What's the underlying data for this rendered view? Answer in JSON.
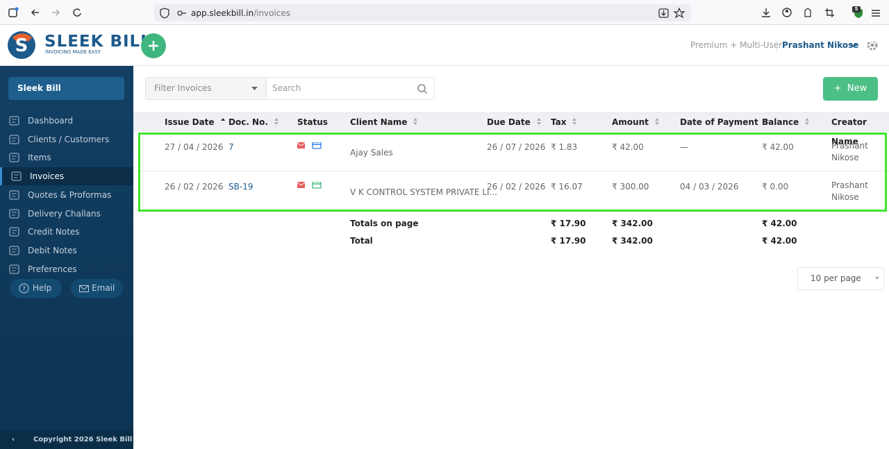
{
  "browser": {
    "url_domain": "app.sleekbill.in",
    "url_path": "/invoices",
    "extension_badge": "5"
  },
  "header": {
    "logo_title": "SLEEK BILL",
    "logo_tagline": "INVOICING MADE EASY",
    "plan": "Premium + Multi-User",
    "user": "Prashant Nikose"
  },
  "sidebar": {
    "company": "Sleek Bill",
    "nav": [
      "Dashboard",
      "Clients / Customers",
      "Items",
      "Invoices",
      "Quotes & Proformas",
      "Delivery Challans",
      "Credit Notes",
      "Debit Notes",
      "Preferences"
    ],
    "help": "Help",
    "email": "Email",
    "footer": "Copyright 2026 Sleek Bill"
  },
  "toolbar": {
    "filter": "Filter Invoices",
    "search": "Search",
    "new_button": "New"
  },
  "table": {
    "columns": [
      "Issue Date",
      "Doc. No.",
      "Status",
      "Client Name",
      "Due Date",
      "Tax",
      "Amount",
      "Date of Payment",
      "Balance",
      "Creator Name"
    ],
    "rows": [
      {
        "issue_date": "27 / 04 / 2026",
        "doc_no": "7",
        "client": "Ajay Sales",
        "due_date": "26 / 07 / 2026",
        "tax": "₹ 1.83",
        "amount": "₹ 42.00",
        "payment_date": "—",
        "balance": "₹ 42.00",
        "creator": "Prashant Nikose"
      },
      {
        "issue_date": "26 / 02 / 2026",
        "doc_no": "SB-19",
        "client": "V K CONTROL SYSTEM PRIVATE LI...",
        "due_date": "26 / 02 / 2026",
        "tax": "₹ 16.07",
        "amount": "₹ 300.00",
        "payment_date": "04 / 03 / 2026",
        "balance": "₹ 0.00",
        "creator": "Prashant Nikose"
      }
    ],
    "totals": [
      {
        "label": "Totals on page",
        "tax": "₹ 17.90",
        "amount": "₹ 342.00",
        "balance": "₹ 42.00"
      },
      {
        "label": "Total",
        "tax": "₹ 17.90",
        "amount": "₹ 342.00",
        "balance": "₹ 42.00"
      }
    ]
  },
  "pagination": {
    "per_page": "10 per page"
  }
}
